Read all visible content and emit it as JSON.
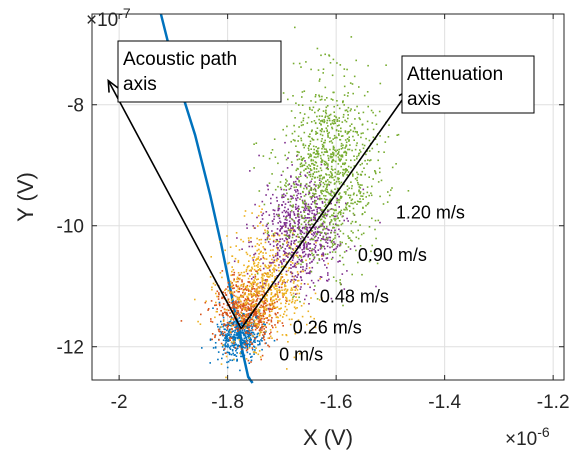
{
  "chart_data": {
    "type": "scatter",
    "title": "",
    "xlabel": "X (V)",
    "ylabel": "Y (V)",
    "x_exponent": "×10",
    "x_exponent_power": "-6",
    "y_exponent": "×10",
    "y_exponent_power": "-7",
    "xlim": [
      -2.05,
      -1.18
    ],
    "ylim": [
      -12.55,
      -6.5
    ],
    "x_units_scale": 1e-06,
    "y_units_scale": 1e-07,
    "grid": true,
    "x_ticks": [
      -2.0,
      -1.8,
      -1.6,
      -1.4,
      -1.2
    ],
    "x_tick_labels": [
      "-2",
      "-1.8",
      "-1.6",
      "-1.4",
      "-1.2"
    ],
    "y_ticks": [
      -12,
      -10,
      -8
    ],
    "y_tick_labels": [
      "-12",
      "-10",
      "-8"
    ],
    "series": [
      {
        "name": "0 m/s",
        "color": "#0072bd",
        "center": [
          -1.78,
          -11.8
        ],
        "spread_along": 0.02,
        "spread_across": 0.2,
        "n": 450
      },
      {
        "name": "0.26 m/s",
        "color": "#d95319",
        "center": [
          -1.765,
          -11.4
        ],
        "spread_along": 0.03,
        "spread_across": 0.28,
        "n": 550
      },
      {
        "name": "0.48 m/s",
        "color": "#edb120",
        "center": [
          -1.735,
          -11.0
        ],
        "spread_along": 0.04,
        "spread_across": 0.45,
        "n": 650
      },
      {
        "name": "0.90 m/s",
        "color": "#7e2f8e",
        "center": [
          -1.665,
          -10.1
        ],
        "spread_along": 0.04,
        "spread_across": 0.45,
        "n": 700
      },
      {
        "name": "1.20 m/s",
        "color": "#77ac30",
        "center": [
          -1.615,
          -9.1
        ],
        "spread_along": 0.045,
        "spread_across": 0.75,
        "n": 1100
      }
    ],
    "annotations": [
      {
        "text": "0 m/s",
        "x": -1.705,
        "y": -12.23
      },
      {
        "text": "0.26 m/s",
        "x": -1.68,
        "y": -11.78
      },
      {
        "text": "0.48 m/s",
        "x": -1.63,
        "y": -11.27
      },
      {
        "text": "0.90 m/s",
        "x": -1.56,
        "y": -10.58
      },
      {
        "text": "1.20 m/s",
        "x": -1.49,
        "y": -9.88
      }
    ],
    "curve": {
      "color": "#0072bd",
      "x": [
        -1.923,
        -1.895,
        -1.86,
        -1.832,
        -1.812,
        -1.796,
        -1.783,
        -1.772,
        -1.762,
        -1.754
      ],
      "y": [
        -6.5,
        -7.5,
        -8.5,
        -9.5,
        -10.3,
        -11.0,
        -11.6,
        -12.1,
        -12.5,
        -12.8
      ]
    },
    "arrows": [
      {
        "name": "acoustic-path-axis-arrow",
        "from": [
          -1.775,
          -11.7
        ],
        "to": [
          -2.02,
          -7.6
        ]
      },
      {
        "name": "attenuation-axis-arrow",
        "from": [
          -1.775,
          -11.7
        ],
        "to": [
          -1.465,
          -7.75
        ]
      }
    ],
    "label_boxes": [
      {
        "name": "acoustic-path-label",
        "lines": [
          "Acoustic path",
          "axis"
        ]
      },
      {
        "name": "attenuation-label",
        "lines": [
          "Attenuation",
          "axis"
        ]
      }
    ]
  }
}
